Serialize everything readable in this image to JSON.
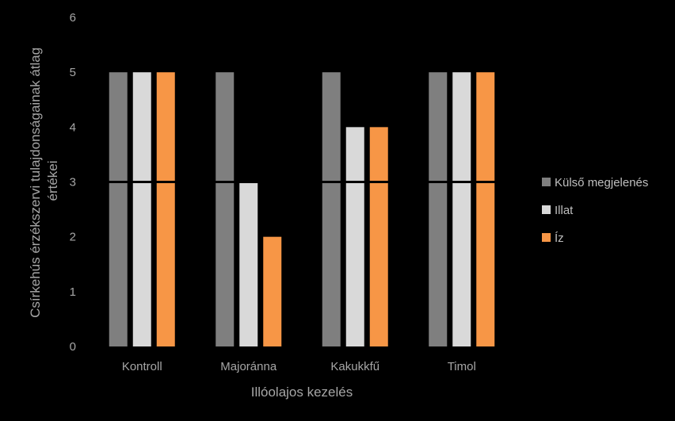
{
  "chart_data": {
    "type": "bar",
    "title": "",
    "xlabel": "Illóolajos kezelés",
    "ylabel_lines": [
      "Csírkehús érzékszervi tulajdonságainak átlag",
      "értékei"
    ],
    "categories": [
      "Kontroll",
      "Majoránna",
      "Kakukkfű",
      "Timol"
    ],
    "series": [
      {
        "name": "Külső megjelenés",
        "color": "#7f7f7f",
        "values": [
          5,
          5,
          5,
          5
        ]
      },
      {
        "name": "Illat",
        "color": "#d9d9d9",
        "values": [
          5,
          3,
          4,
          5
        ]
      },
      {
        "name": "Íz",
        "color": "#f79646",
        "values": [
          5,
          2,
          4,
          5
        ]
      }
    ],
    "ylim": [
      0,
      6
    ],
    "yticks": [
      "0",
      "1",
      "2",
      "3",
      "4",
      "5",
      "6"
    ],
    "reference_line": {
      "value": 3,
      "color": "#000000"
    },
    "grid": false,
    "legend_position": "right"
  }
}
